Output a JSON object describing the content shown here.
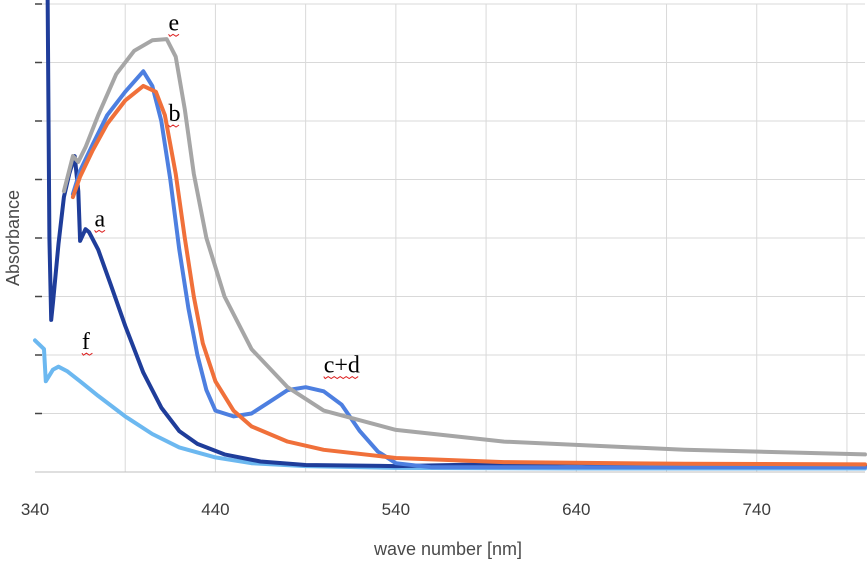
{
  "chart_data": {
    "type": "line",
    "title": "",
    "xlabel": "wave number [nm]",
    "ylabel": "Absorbance",
    "xlim": [
      340,
      800
    ],
    "ylim": [
      0,
      8
    ],
    "x_ticks": [
      340,
      440,
      540,
      640,
      740
    ],
    "x_tick_labels": [
      "340",
      "440",
      "540",
      "640",
      "740"
    ],
    "grid": true,
    "series": [
      {
        "label": "f",
        "color": "#6cb8f0",
        "points": [
          [
            340,
            2.25
          ],
          [
            345,
            2.1
          ],
          [
            346,
            1.55
          ],
          [
            350,
            1.75
          ],
          [
            353,
            1.8
          ],
          [
            358,
            1.72
          ],
          [
            365,
            1.55
          ],
          [
            375,
            1.3
          ],
          [
            390,
            0.95
          ],
          [
            405,
            0.65
          ],
          [
            420,
            0.42
          ],
          [
            440,
            0.25
          ],
          [
            460,
            0.15
          ],
          [
            490,
            0.1
          ],
          [
            540,
            0.07
          ],
          [
            640,
            0.06
          ],
          [
            800,
            0.06
          ]
        ]
      },
      {
        "label": "a",
        "color": "#1f3d9a",
        "points": [
          [
            347,
            8.2
          ],
          [
            348,
            4.0
          ],
          [
            349,
            2.6
          ],
          [
            350,
            2.9
          ],
          [
            353,
            3.9
          ],
          [
            356,
            4.7
          ],
          [
            359,
            5.1
          ],
          [
            362,
            5.4
          ],
          [
            364,
            4.8
          ],
          [
            365,
            3.95
          ],
          [
            368,
            4.15
          ],
          [
            370,
            4.1
          ],
          [
            375,
            3.8
          ],
          [
            382,
            3.2
          ],
          [
            390,
            2.5
          ],
          [
            400,
            1.7
          ],
          [
            410,
            1.1
          ],
          [
            420,
            0.7
          ],
          [
            430,
            0.48
          ],
          [
            445,
            0.3
          ],
          [
            465,
            0.18
          ],
          [
            490,
            0.12
          ],
          [
            540,
            0.1
          ],
          [
            590,
            0.13
          ],
          [
            640,
            0.15
          ],
          [
            680,
            0.12
          ],
          [
            740,
            0.11
          ],
          [
            800,
            0.11
          ]
        ]
      },
      {
        "label": "c+d",
        "color": "#4d7fe0",
        "points": [
          [
            361,
            4.75
          ],
          [
            365,
            5.15
          ],
          [
            372,
            5.6
          ],
          [
            380,
            6.1
          ],
          [
            390,
            6.5
          ],
          [
            400,
            6.85
          ],
          [
            405,
            6.6
          ],
          [
            410,
            6.0
          ],
          [
            415,
            5.0
          ],
          [
            420,
            3.8
          ],
          [
            425,
            2.8
          ],
          [
            430,
            2.0
          ],
          [
            435,
            1.4
          ],
          [
            440,
            1.05
          ],
          [
            450,
            0.95
          ],
          [
            460,
            1.0
          ],
          [
            470,
            1.2
          ],
          [
            480,
            1.4
          ],
          [
            490,
            1.45
          ],
          [
            500,
            1.38
          ],
          [
            510,
            1.15
          ],
          [
            520,
            0.7
          ],
          [
            530,
            0.35
          ],
          [
            540,
            0.15
          ],
          [
            560,
            0.08
          ],
          [
            800,
            0.08
          ]
        ]
      },
      {
        "label": "b",
        "color": "#f0703a",
        "points": [
          [
            361,
            4.7
          ],
          [
            365,
            5.05
          ],
          [
            372,
            5.5
          ],
          [
            380,
            5.95
          ],
          [
            390,
            6.35
          ],
          [
            400,
            6.6
          ],
          [
            407,
            6.5
          ],
          [
            412,
            6.1
          ],
          [
            418,
            5.1
          ],
          [
            423,
            4.0
          ],
          [
            428,
            3.0
          ],
          [
            433,
            2.2
          ],
          [
            440,
            1.55
          ],
          [
            450,
            1.05
          ],
          [
            460,
            0.78
          ],
          [
            480,
            0.52
          ],
          [
            500,
            0.38
          ],
          [
            540,
            0.24
          ],
          [
            600,
            0.17
          ],
          [
            700,
            0.14
          ],
          [
            800,
            0.13
          ]
        ]
      },
      {
        "label": "e",
        "color": "#a6a6a6",
        "points": [
          [
            356,
            4.8
          ],
          [
            361,
            5.4
          ],
          [
            364,
            5.3
          ],
          [
            368,
            5.55
          ],
          [
            375,
            6.1
          ],
          [
            385,
            6.8
          ],
          [
            395,
            7.2
          ],
          [
            405,
            7.38
          ],
          [
            413,
            7.4
          ],
          [
            418,
            7.1
          ],
          [
            423,
            6.2
          ],
          [
            428,
            5.1
          ],
          [
            435,
            4.0
          ],
          [
            445,
            3.0
          ],
          [
            460,
            2.1
          ],
          [
            480,
            1.45
          ],
          [
            500,
            1.05
          ],
          [
            540,
            0.72
          ],
          [
            600,
            0.52
          ],
          [
            700,
            0.38
          ],
          [
            800,
            0.3
          ]
        ]
      }
    ],
    "annotations": [
      {
        "text": "e",
        "x": 414,
        "y": 7.55
      },
      {
        "text": "b",
        "x": 414,
        "y": 6.0
      },
      {
        "text": "a",
        "x": 373,
        "y": 4.2
      },
      {
        "text": "c+d",
        "x": 500,
        "y": 1.7
      },
      {
        "text": "f",
        "x": 366,
        "y": 2.1
      }
    ]
  }
}
